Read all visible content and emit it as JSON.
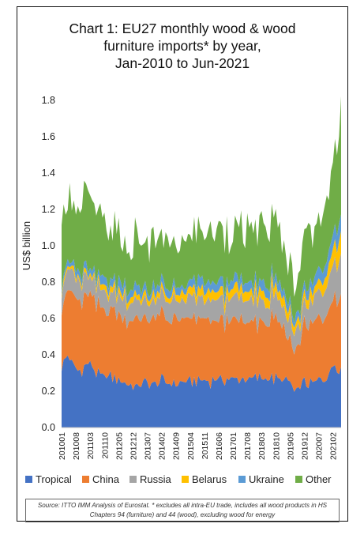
{
  "chart_data": {
    "type": "area",
    "stacked": true,
    "title_lines": [
      "Chart 1: EU27 monthly wood & wood",
      "furniture imports* by year,",
      "Jan-2010 to Jun-2021"
    ],
    "ylabel": "US$ billion",
    "ylim": [
      0,
      1.9
    ],
    "yticks": [
      "0.0",
      "0.2",
      "0.4",
      "0.6",
      "0.8",
      "1.0",
      "1.2",
      "1.4",
      "1.6",
      "1.8"
    ],
    "x_start": "2010-01",
    "x_end": "2021-06",
    "xtick_labels": [
      "201001",
      "201008",
      "201103",
      "201110",
      "201205",
      "201212",
      "201307",
      "201402",
      "201409",
      "201504",
      "201511",
      "201606",
      "201701",
      "201708",
      "201803",
      "201810",
      "201905",
      "201912",
      "202007",
      "202102"
    ],
    "legend_position": "bottom",
    "series": [
      {
        "name": "Tropical",
        "color": "#4472c4",
        "anchors": [
          [
            0,
            0.33
          ],
          [
            3,
            0.4
          ],
          [
            8,
            0.31
          ],
          [
            14,
            0.36
          ],
          [
            18,
            0.28
          ],
          [
            24,
            0.28
          ],
          [
            30,
            0.25
          ],
          [
            36,
            0.23
          ],
          [
            42,
            0.24
          ],
          [
            48,
            0.25
          ],
          [
            54,
            0.24
          ],
          [
            60,
            0.25
          ],
          [
            66,
            0.26
          ],
          [
            72,
            0.26
          ],
          [
            78,
            0.27
          ],
          [
            84,
            0.27
          ],
          [
            90,
            0.27
          ],
          [
            96,
            0.27
          ],
          [
            102,
            0.27
          ],
          [
            108,
            0.26
          ],
          [
            112,
            0.25
          ],
          [
            114,
            0.19
          ],
          [
            118,
            0.24
          ],
          [
            124,
            0.25
          ],
          [
            130,
            0.28
          ],
          [
            134,
            0.36
          ],
          [
            137,
            0.33
          ]
        ]
      },
      {
        "name": "China",
        "color": "#ed7d31",
        "anchors": [
          [
            0,
            0.36
          ],
          [
            6,
            0.38
          ],
          [
            12,
            0.38
          ],
          [
            18,
            0.36
          ],
          [
            24,
            0.37
          ],
          [
            30,
            0.36
          ],
          [
            36,
            0.37
          ],
          [
            42,
            0.36
          ],
          [
            48,
            0.35
          ],
          [
            54,
            0.35
          ],
          [
            60,
            0.34
          ],
          [
            66,
            0.34
          ],
          [
            72,
            0.32
          ],
          [
            78,
            0.32
          ],
          [
            84,
            0.32
          ],
          [
            90,
            0.31
          ],
          [
            96,
            0.31
          ],
          [
            102,
            0.31
          ],
          [
            108,
            0.3
          ],
          [
            112,
            0.23
          ],
          [
            114,
            0.21
          ],
          [
            118,
            0.3
          ],
          [
            124,
            0.33
          ],
          [
            130,
            0.36
          ],
          [
            134,
            0.39
          ],
          [
            137,
            0.41
          ]
        ]
      },
      {
        "name": "Russia",
        "color": "#a5a5a5",
        "anchors": [
          [
            0,
            0.11
          ],
          [
            12,
            0.11
          ],
          [
            24,
            0.1
          ],
          [
            36,
            0.1
          ],
          [
            48,
            0.1
          ],
          [
            60,
            0.1
          ],
          [
            72,
            0.11
          ],
          [
            84,
            0.12
          ],
          [
            96,
            0.12
          ],
          [
            108,
            0.12
          ],
          [
            114,
            0.1
          ],
          [
            124,
            0.12
          ],
          [
            132,
            0.16
          ],
          [
            137,
            0.22
          ]
        ]
      },
      {
        "name": "Belarus",
        "color": "#ffc000",
        "anchors": [
          [
            0,
            0.02
          ],
          [
            12,
            0.02
          ],
          [
            24,
            0.03
          ],
          [
            36,
            0.03
          ],
          [
            48,
            0.03
          ],
          [
            60,
            0.04
          ],
          [
            72,
            0.05
          ],
          [
            84,
            0.05
          ],
          [
            96,
            0.05
          ],
          [
            108,
            0.05
          ],
          [
            114,
            0.04
          ],
          [
            124,
            0.05
          ],
          [
            132,
            0.08
          ],
          [
            137,
            0.12
          ]
        ]
      },
      {
        "name": "Ukraine",
        "color": "#5b9bd5",
        "anchors": [
          [
            0,
            0.03
          ],
          [
            12,
            0.03
          ],
          [
            24,
            0.04
          ],
          [
            36,
            0.04
          ],
          [
            48,
            0.04
          ],
          [
            60,
            0.04
          ],
          [
            72,
            0.05
          ],
          [
            84,
            0.05
          ],
          [
            96,
            0.05
          ],
          [
            108,
            0.05
          ],
          [
            114,
            0.04
          ],
          [
            124,
            0.06
          ],
          [
            132,
            0.08
          ],
          [
            137,
            0.1
          ]
        ]
      },
      {
        "name": "Other",
        "color": "#70ad47",
        "anchors": [
          [
            0,
            0.34
          ],
          [
            3,
            0.38
          ],
          [
            8,
            0.33
          ],
          [
            14,
            0.4
          ],
          [
            18,
            0.3
          ],
          [
            24,
            0.28
          ],
          [
            30,
            0.22
          ],
          [
            36,
            0.25
          ],
          [
            42,
            0.25
          ],
          [
            48,
            0.25
          ],
          [
            54,
            0.23
          ],
          [
            60,
            0.24
          ],
          [
            66,
            0.26
          ],
          [
            72,
            0.27
          ],
          [
            78,
            0.3
          ],
          [
            84,
            0.28
          ],
          [
            90,
            0.28
          ],
          [
            96,
            0.3
          ],
          [
            102,
            0.3
          ],
          [
            108,
            0.26
          ],
          [
            112,
            0.2
          ],
          [
            114,
            0.2
          ],
          [
            118,
            0.28
          ],
          [
            124,
            0.27
          ],
          [
            130,
            0.3
          ],
          [
            134,
            0.45
          ],
          [
            137,
            0.62
          ]
        ]
      }
    ]
  },
  "source_text": "Source: ITTO IMM Analysis of Eurostat. * excludes all intra-EU trade, includes all wood products in HS Chapters 94 (furniture) and 44 (wood), excluding wood for energy"
}
